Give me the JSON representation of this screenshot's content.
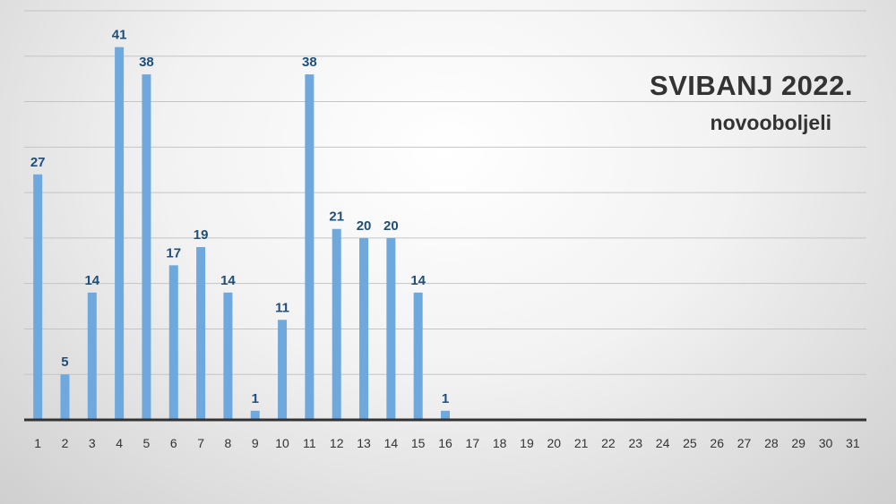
{
  "chart_data": {
    "type": "bar",
    "title": "SVIBANJ 2022.",
    "subtitle": "novooboljeli",
    "xlabel": "",
    "ylabel": "",
    "categories": [
      "1",
      "2",
      "3",
      "4",
      "5",
      "6",
      "7",
      "8",
      "9",
      "10",
      "11",
      "12",
      "13",
      "14",
      "15",
      "16",
      "17",
      "18",
      "19",
      "20",
      "21",
      "22",
      "23",
      "24",
      "25",
      "26",
      "27",
      "28",
      "29",
      "30",
      "31"
    ],
    "series": [
      {
        "values": [
          27,
          5,
          14,
          41,
          38,
          17,
          19,
          14,
          1,
          11,
          38,
          21,
          20,
          20,
          14,
          1,
          null,
          null,
          null,
          null,
          null,
          null,
          null,
          null,
          null,
          null,
          null,
          null,
          null,
          null,
          null
        ]
      }
    ],
    "ylim": [
      0,
      45
    ],
    "grid": true,
    "bar_color": "#6fa8dc",
    "label_color": "#1f4e79",
    "tick_color": "#333333"
  }
}
